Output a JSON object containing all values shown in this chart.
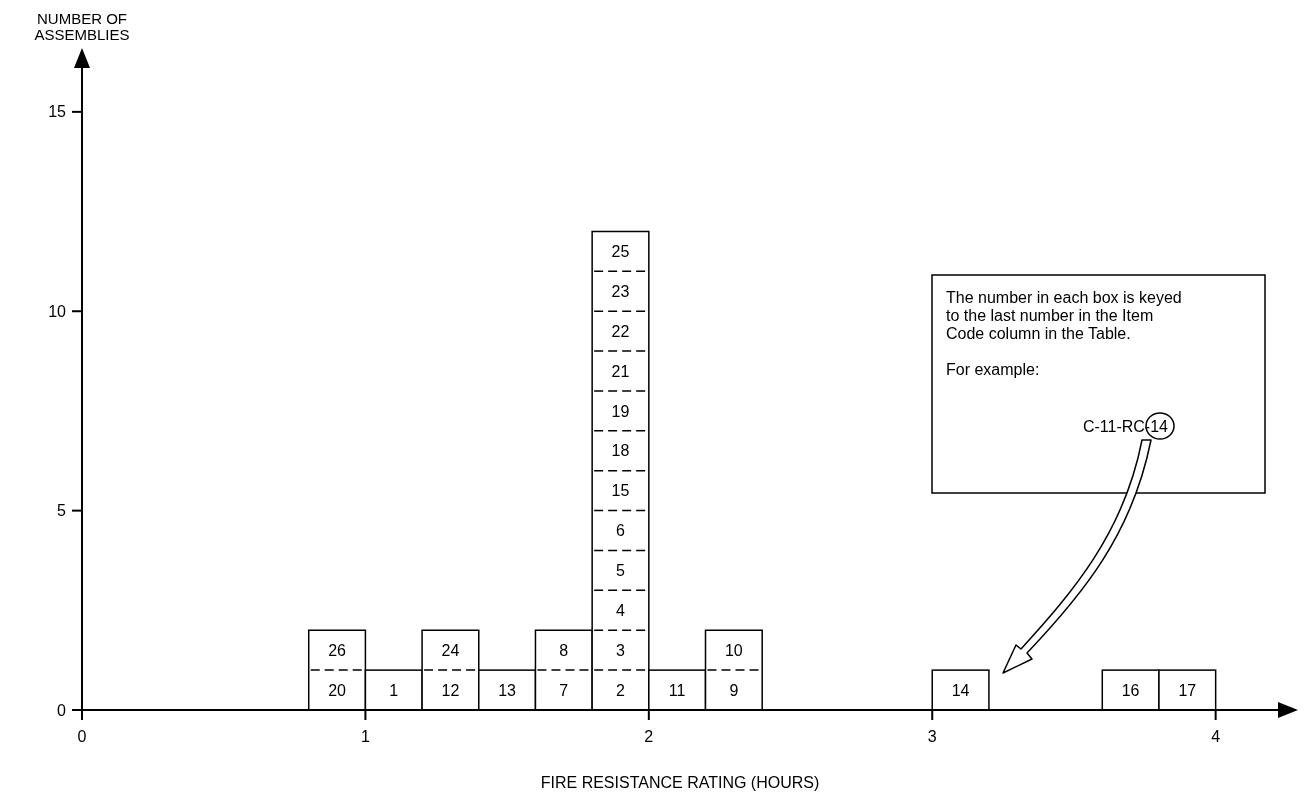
{
  "chart_data": {
    "type": "histogram",
    "xlabel": "FIRE RESISTANCE RATING (HOURS)",
    "ylabel": "NUMBER OF ASSEMBLIES",
    "bins": [
      0.8,
      1,
      1.2,
      1.4,
      1.6,
      1.8,
      2,
      2.2,
      2.4,
      2.6,
      2.8,
      3,
      3.2,
      3.4,
      3.6,
      3.8,
      4
    ],
    "values": [
      2,
      1,
      2,
      1,
      2,
      12,
      1,
      2,
      0,
      0,
      0,
      1,
      0,
      0,
      1,
      1
    ],
    "color": "#000000",
    "xlim": [
      0,
      4.22
    ],
    "xticks": [
      0,
      1,
      2,
      3,
      4
    ],
    "ylim": [
      0,
      16.1
    ],
    "yticks": [
      0,
      5,
      10,
      15
    ],
    "grid": false,
    "annotations": [
      "20",
      "26",
      "1",
      "12",
      "24",
      "13",
      "7",
      "8",
      "2",
      "3",
      "4",
      "5",
      "6",
      "15",
      "18",
      "19",
      "21",
      "22",
      "23",
      "25",
      "11",
      "9",
      "10",
      "14",
      "16",
      "17",
      "The number in each box is keyed to the last number in the Item Code column in the Table.",
      "For example:",
      "C-11-RC-14"
    ]
  }
}
